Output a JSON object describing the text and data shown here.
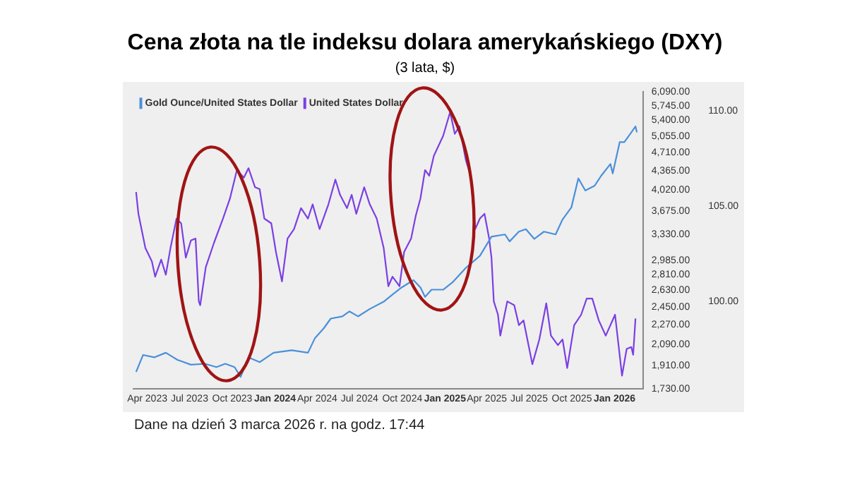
{
  "chart_data": {
    "type": "line",
    "title": "Cena złota na tle indeksu dolara amerykańskiego (DXY)",
    "subtitle": "(3 lata, $)",
    "annotations": [
      "Dane na dzień 3 marca 2026 r. na godz. 17:44"
    ],
    "legend": "top left",
    "grid": false,
    "log": "y",
    "xlim": [
      "2023-03-03",
      "2026-03-03"
    ],
    "xticks": [
      {
        "value": "2023-04-01",
        "label": "Apr 2023"
      },
      {
        "value": "2023-07-01",
        "label": "Jul 2023"
      },
      {
        "value": "2023-10-01",
        "label": "Oct 2023"
      },
      {
        "value": "2024-01-01",
        "label": "Jan 2024"
      },
      {
        "value": "2024-04-01",
        "label": "Apr 2024"
      },
      {
        "value": "2024-07-01",
        "label": "Jul 2024"
      },
      {
        "value": "2024-10-01",
        "label": "Oct 2024"
      },
      {
        "value": "2025-01-01",
        "label": "Jan 2025"
      },
      {
        "value": "2025-04-01",
        "label": "Apr 2025"
      },
      {
        "value": "2025-07-01",
        "label": "Jul 2025"
      },
      {
        "value": "2025-10-01",
        "label": "Oct 2025"
      },
      {
        "value": "2026-01-01",
        "label": "Jan 2026"
      }
    ],
    "ylim": [
      1730,
      6090
    ],
    "yticks": [
      {
        "value": 1730,
        "label": "1,730.00"
      },
      {
        "value": 1910,
        "label": "1,910.00"
      },
      {
        "value": 2090,
        "label": "2,090.00"
      },
      {
        "value": 2270,
        "label": "2,270.00"
      },
      {
        "value": 2450,
        "label": "2,450.00"
      },
      {
        "value": 2630,
        "label": "2,630.00"
      },
      {
        "value": 2810,
        "label": "2,810.00"
      },
      {
        "value": 2985,
        "label": "2,985.00"
      },
      {
        "value": 3330,
        "label": "3,330.00"
      },
      {
        "value": 3675,
        "label": "3,675.00"
      },
      {
        "value": 4020,
        "label": "4,020.00"
      },
      {
        "value": 4365,
        "label": "4,365.00"
      },
      {
        "value": 4710,
        "label": "4,710.00"
      },
      {
        "value": 5055,
        "label": "5,055.00"
      },
      {
        "value": 5400,
        "label": "5,400.00"
      },
      {
        "value": 5745,
        "label": "5,745.00"
      },
      {
        "value": 6090,
        "label": "6,090.00"
      }
    ],
    "y2lim": [
      95.4,
      111
    ],
    "y2ticks": [
      {
        "value": 100,
        "label": "100.00"
      },
      {
        "value": 105,
        "label": "105.00"
      },
      {
        "value": 110,
        "label": "110.00"
      }
    ],
    "series": [
      {
        "name": "Gold Ounce/United States Dollar",
        "color": "#4a90d9",
        "x": [
          "2023-03-08",
          "2023-03-23",
          "2023-04-16",
          "2023-05-11",
          "2023-06-05",
          "2023-07-04",
          "2023-08-03",
          "2023-08-28",
          "2023-09-16",
          "2023-10-06",
          "2023-10-19",
          "2023-11-05",
          "2023-11-29",
          "2023-12-29",
          "2024-02-06",
          "2024-03-12",
          "2024-03-27",
          "2024-04-15",
          "2024-04-30",
          "2024-05-25",
          "2024-06-09",
          "2024-06-28",
          "2024-07-23",
          "2024-08-22",
          "2024-09-10",
          "2024-09-30",
          "2024-10-25",
          "2024-11-09",
          "2024-11-19",
          "2024-12-03",
          "2024-12-28",
          "2025-01-17",
          "2025-02-15",
          "2025-03-17",
          "2025-04-11",
          "2025-05-10",
          "2025-05-20",
          "2025-06-09",
          "2025-06-24",
          "2025-07-12",
          "2025-08-02",
          "2025-08-27",
          "2025-09-11",
          "2025-09-30",
          "2025-10-15",
          "2025-10-30",
          "2025-11-19",
          "2025-12-03",
          "2025-12-23",
          "2025-12-28",
          "2026-01-12",
          "2026-01-22",
          "2026-02-06",
          "2026-02-15",
          "2026-02-18"
        ],
        "values": [
          1859,
          1998,
          1978,
          2017,
          1957,
          1917,
          1925,
          1898,
          1925,
          1898,
          1821,
          1978,
          1938,
          2017,
          2038,
          2017,
          2146,
          2237,
          2331,
          2353,
          2403,
          2353,
          2428,
          2504,
          2582,
          2661,
          2744,
          2661,
          2555,
          2635,
          2635,
          2718,
          2891,
          3041,
          3299,
          3330,
          3233,
          3370,
          3405,
          3268,
          3370,
          3330,
          3548,
          3735,
          4223,
          4012,
          4093,
          4268,
          4489,
          4313,
          4924,
          4924,
          5133,
          5263,
          5133
        ]
      },
      {
        "name": "United States Dollar",
        "color": "#7b3fe4",
        "axis": "y2",
        "x": [
          "2023-03-08",
          "2023-03-13",
          "2023-03-28",
          "2023-04-11",
          "2023-04-18",
          "2023-05-01",
          "2023-05-11",
          "2023-05-21",
          "2023-06-03",
          "2023-06-13",
          "2023-06-23",
          "2023-07-04",
          "2023-07-14",
          "2023-07-21",
          "2023-07-24",
          "2023-08-05",
          "2023-08-23",
          "2023-09-11",
          "2023-09-26",
          "2023-10-11",
          "2023-10-26",
          "2023-11-05",
          "2023-11-19",
          "2023-11-29",
          "2023-12-09",
          "2023-12-24",
          "2024-01-03",
          "2024-01-16",
          "2024-01-28",
          "2024-02-11",
          "2024-02-26",
          "2024-03-12",
          "2024-03-22",
          "2024-04-06",
          "2024-04-25",
          "2024-05-10",
          "2024-05-20",
          "2024-06-04",
          "2024-06-14",
          "2024-06-24",
          "2024-07-11",
          "2024-07-23",
          "2024-08-07",
          "2024-08-22",
          "2024-09-01",
          "2024-09-10",
          "2024-09-25",
          "2024-10-05",
          "2024-10-20",
          "2024-10-30",
          "2024-11-09",
          "2024-11-19",
          "2024-11-28",
          "2024-12-08",
          "2024-12-28",
          "2025-01-12",
          "2025-01-22",
          "2025-02-01",
          "2025-02-15",
          "2025-02-25",
          "2025-03-07",
          "2025-03-17",
          "2025-03-27",
          "2025-04-06",
          "2025-04-11",
          "2025-04-16",
          "2025-04-25",
          "2025-04-30",
          "2025-05-15",
          "2025-05-30",
          "2025-06-09",
          "2025-06-19",
          "2025-07-08",
          "2025-07-23",
          "2025-08-07",
          "2025-08-17",
          "2025-09-01",
          "2025-09-11",
          "2025-09-21",
          "2025-10-06",
          "2025-10-21",
          "2025-11-02",
          "2025-11-14",
          "2025-11-28",
          "2025-12-13",
          "2026-01-02",
          "2026-01-17",
          "2026-01-27",
          "2026-02-06",
          "2026-02-10",
          "2026-02-15"
        ],
        "values": [
          105.75,
          104.6,
          102.8,
          102.1,
          101.3,
          102.2,
          101.4,
          102.8,
          104.35,
          104.1,
          102.3,
          103.2,
          103.3,
          100.0,
          99.8,
          101.8,
          103.1,
          104.35,
          105.4,
          106.9,
          106.5,
          107.0,
          106.0,
          105.9,
          104.35,
          104.1,
          102.6,
          101.05,
          103.3,
          103.8,
          104.9,
          104.35,
          105.1,
          103.8,
          105.1,
          106.4,
          105.6,
          104.9,
          105.6,
          104.6,
          106.0,
          105.1,
          104.35,
          102.8,
          100.8,
          101.3,
          100.8,
          102.6,
          103.3,
          104.5,
          105.4,
          106.9,
          106.6,
          107.65,
          108.7,
          109.95,
          108.8,
          109.2,
          107.4,
          106.6,
          103.8,
          104.35,
          104.6,
          103.3,
          102.3,
          100.0,
          99.3,
          98.2,
          100.0,
          99.8,
          98.75,
          99.0,
          96.7,
          98.0,
          99.9,
          98.2,
          97.7,
          98.0,
          96.5,
          98.75,
          99.3,
          100.15,
          100.15,
          99.0,
          98.2,
          99.3,
          96.1,
          97.5,
          97.6,
          97.2,
          99.1
        ]
      }
    ]
  }
}
